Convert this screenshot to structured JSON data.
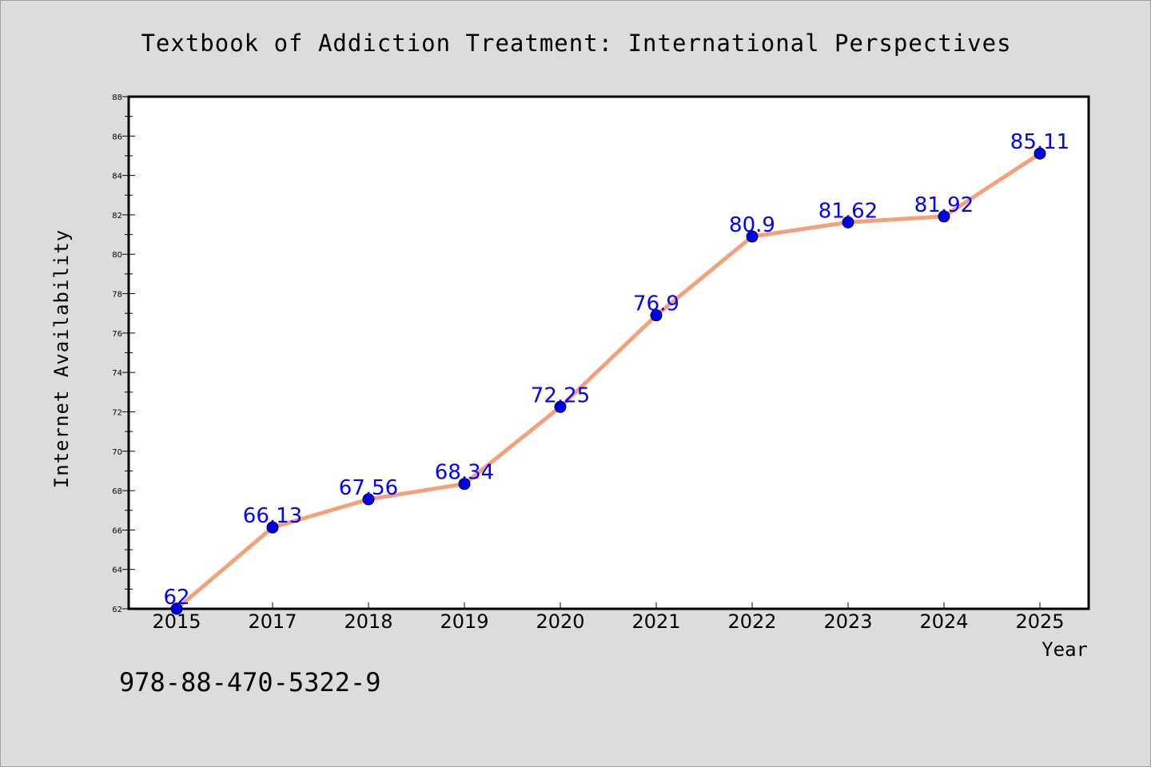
{
  "chart_data": {
    "type": "line",
    "title": "Textbook of Addiction Treatment: International Perspectives",
    "xlabel": "Year",
    "ylabel": "Internet Availability",
    "categories": [
      "2015",
      "2017",
      "2018",
      "2019",
      "2020",
      "2021",
      "2022",
      "2023",
      "2024",
      "2025"
    ],
    "series": [
      {
        "values": [
          62,
          66.13,
          67.56,
          68.34,
          72.25,
          76.9,
          80.9,
          81.62,
          81.92,
          85.11
        ],
        "data_labels": [
          "62",
          "66.13",
          "67.56",
          "68.34",
          "72.25",
          "76.9",
          "80.9",
          "81.62",
          "81.92",
          "85.11"
        ]
      }
    ],
    "ylim": [
      62,
      88
    ],
    "yticks": [
      62,
      64,
      66,
      68,
      70,
      72,
      74,
      76,
      78,
      80,
      82,
      84,
      86,
      88
    ],
    "grid": false,
    "line_color": "#f4a07c",
    "marker_color": "#0000ee",
    "label_color": "#0000ff"
  },
  "footer": {
    "isbn": "978-88-470-5322-9"
  },
  "colors": {
    "background": "#dcdcdc",
    "plot_background": "#ffffff",
    "axis": "#000000"
  }
}
